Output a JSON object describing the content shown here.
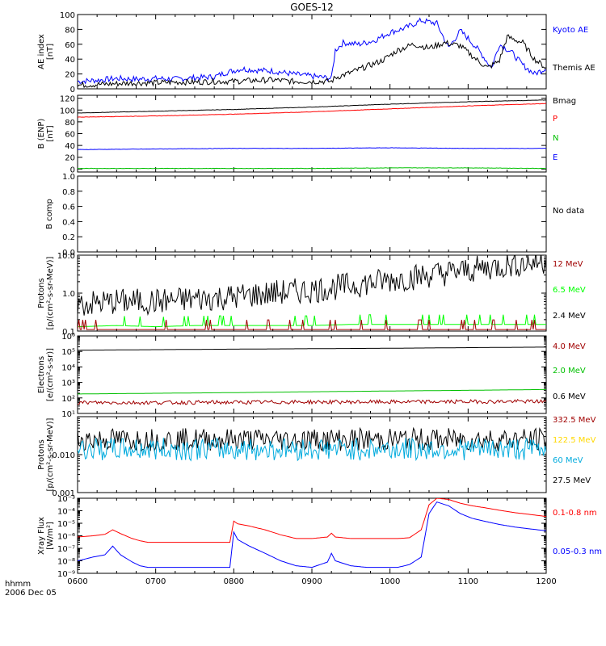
{
  "title": "GOES-12",
  "footer": {
    "time_label": "hhmm",
    "date_label": "2006 Dec 05"
  },
  "x_axis": {
    "ticks": [
      "0600",
      "0700",
      "0800",
      "0900",
      "1000",
      "1100",
      "1200"
    ]
  },
  "colors": {
    "black": "#000000",
    "blue": "#0000ff",
    "red": "#ff0000",
    "green": "#00c000",
    "dark_red": "#a00000",
    "bright_green": "#00ff00",
    "cyan": "#00aadd",
    "yellow": "#ffd800",
    "dark_green": "#00a000"
  },
  "chart_data": [
    {
      "type": "line",
      "ylabel": [
        "AE index",
        "[nT]"
      ],
      "yrange": [
        0,
        100
      ],
      "yticks": [
        "0",
        "20",
        "40",
        "60",
        "80",
        "100"
      ],
      "legend": [
        {
          "text": "Kyoto AE",
          "color": "#0000ff"
        },
        {
          "text": "Themis AE",
          "color": "#000000"
        }
      ],
      "series": [
        {
          "name": "Kyoto AE",
          "color": "#0000ff",
          "x": [
            6.0,
            6.3,
            6.5,
            6.75,
            7.0,
            7.25,
            7.5,
            7.75,
            7.9,
            8.1,
            8.3,
            8.5,
            8.75,
            9.0,
            9.25,
            9.3,
            9.4,
            9.6,
            9.8,
            10.0,
            10.2,
            10.4,
            10.6,
            10.75,
            10.9,
            11.0,
            11.15,
            11.3,
            11.4,
            11.55,
            11.7,
            11.85,
            12.0
          ],
          "y": [
            10,
            12,
            14,
            13,
            14,
            13,
            15,
            16,
            22,
            27,
            25,
            24,
            20,
            17,
            14,
            52,
            62,
            60,
            65,
            76,
            82,
            92,
            88,
            55,
            78,
            68,
            50,
            28,
            60,
            50,
            32,
            20,
            28
          ]
        },
        {
          "name": "Themis AE",
          "color": "#000000",
          "x": [
            6.0,
            6.3,
            6.5,
            6.75,
            7.0,
            7.25,
            7.5,
            7.75,
            8.0,
            8.2,
            8.5,
            8.75,
            9.0,
            9.25,
            9.3,
            9.5,
            9.7,
            9.9,
            10.1,
            10.3,
            10.5,
            10.7,
            10.9,
            11.1,
            11.25,
            11.4,
            11.5,
            11.7,
            11.85,
            12.0
          ],
          "y": [
            5,
            6,
            7,
            8,
            8,
            9,
            9,
            10,
            10,
            11,
            12,
            10,
            10,
            10,
            15,
            22,
            30,
            38,
            52,
            60,
            55,
            62,
            58,
            40,
            28,
            38,
            70,
            62,
            40,
            28
          ]
        }
      ]
    },
    {
      "type": "line",
      "ylabel": [
        "B (ENP)",
        "[nT]"
      ],
      "yrange": [
        -5,
        125
      ],
      "yticks": [
        "0",
        "20",
        "40",
        "60",
        "80",
        "100",
        "120"
      ],
      "legend": [
        {
          "text": "Bmag",
          "color": "#000000"
        },
        {
          "text": "P",
          "color": "#ff0000"
        },
        {
          "text": "N",
          "color": "#00c000"
        },
        {
          "text": "E",
          "color": "#0000ff"
        }
      ],
      "series": [
        {
          "name": "Bmag",
          "color": "#000000",
          "x": [
            6.0,
            7.0,
            8.0,
            9.0,
            10.0,
            11.0,
            12.0
          ],
          "y": [
            95,
            98,
            101,
            105,
            110,
            114,
            117
          ]
        },
        {
          "name": "P",
          "color": "#ff0000",
          "x": [
            6.0,
            7.0,
            8.0,
            9.0,
            10.0,
            11.0,
            12.0
          ],
          "y": [
            88,
            90,
            93,
            97,
            102,
            107,
            111
          ]
        },
        {
          "name": "N",
          "color": "#00c000",
          "x": [
            6.0,
            7.0,
            8.0,
            9.0,
            10.0,
            11.0,
            12.0
          ],
          "y": [
            1,
            1,
            1,
            1,
            2,
            2,
            1
          ]
        },
        {
          "name": "E",
          "color": "#0000ff",
          "x": [
            6.0,
            7.0,
            8.0,
            9.0,
            10.0,
            11.0,
            12.0
          ],
          "y": [
            33,
            34,
            35,
            35,
            36,
            35,
            35
          ]
        }
      ]
    },
    {
      "type": "line",
      "ylabel": [
        "B comp"
      ],
      "yrange": [
        0,
        1
      ],
      "yticks": [
        "0.0",
        "0.2",
        "0.4",
        "0.6",
        "0.8",
        "1.0"
      ],
      "legend": [
        {
          "text": "No data",
          "color": "#000000"
        }
      ],
      "series": []
    },
    {
      "type": "line",
      "log": true,
      "ylabel": [
        "Protons",
        "[p/(cm²-s-sr-MeV)]"
      ],
      "yrange": [
        0.1,
        10
      ],
      "yticks": [
        "0.1",
        "1.0",
        "10.0"
      ],
      "legend": [
        {
          "text": "12 MeV",
          "color": "#a00000"
        },
        {
          "text": "6.5 MeV",
          "color": "#00ff00"
        },
        {
          "text": "2.4 MeV",
          "color": "#000000"
        }
      ],
      "series": [
        {
          "name": "2.4 MeV",
          "color": "#000000",
          "x": [
            6.0,
            6.5,
            7.0,
            7.5,
            8.0,
            8.5,
            9.0,
            9.5,
            10.0,
            10.5,
            11.0,
            11.5,
            12.0
          ],
          "y": [
            0.5,
            0.6,
            0.6,
            0.7,
            0.8,
            1.0,
            1.2,
            1.6,
            2.2,
            3.0,
            4.0,
            5.5,
            7.0
          ]
        },
        {
          "name": "6.5 MeV",
          "color": "#00ff00",
          "x": [
            6.0,
            6.5,
            7.0,
            7.5,
            8.0,
            8.5,
            9.0,
            9.5,
            10.0,
            10.5,
            11.0,
            11.5,
            12.0
          ],
          "y": [
            0.13,
            0.14,
            0.13,
            0.14,
            0.14,
            0.14,
            0.14,
            0.15,
            0.15,
            0.15,
            0.15,
            0.15,
            0.15
          ]
        },
        {
          "name": "12 MeV",
          "color": "#a00000",
          "x": [
            6.0,
            7.0,
            8.0,
            9.0,
            10.0,
            11.0,
            12.0
          ],
          "y": [
            0.11,
            0.11,
            0.11,
            0.11,
            0.11,
            0.11,
            0.11
          ]
        }
      ]
    },
    {
      "type": "line",
      "log": true,
      "ylabel": [
        "Electrons",
        "[e/(cm²-s-sr)]"
      ],
      "yrange": [
        10,
        1000000
      ],
      "yticks": [
        "10¹",
        "10²",
        "10³",
        "10⁴",
        "10⁵",
        "10⁶"
      ],
      "legend": [
        {
          "text": "4.0 MeV",
          "color": "#a00000"
        },
        {
          "text": "2.0 MeV",
          "color": "#00c000"
        },
        {
          "text": "0.6 MeV",
          "color": "#000000"
        }
      ],
      "series": [
        {
          "name": "0.6 MeV",
          "color": "#000000",
          "x": [
            6.0,
            7.0,
            8.0,
            9.0,
            10.0,
            11.0,
            12.0
          ],
          "y": [
            120000,
            130000,
            140000,
            150000,
            160000,
            175000,
            190000
          ]
        },
        {
          "name": "2.0 MeV",
          "color": "#00c000",
          "x": [
            6.0,
            7.0,
            8.0,
            9.0,
            10.0,
            11.0,
            12.0
          ],
          "y": [
            180,
            200,
            220,
            250,
            280,
            310,
            350
          ]
        },
        {
          "name": "4.0 MeV",
          "color": "#a00000",
          "x": [
            6.0,
            7.0,
            8.0,
            9.0,
            10.0,
            11.0,
            12.0
          ],
          "y": [
            50,
            50,
            52,
            55,
            55,
            58,
            60
          ]
        }
      ]
    },
    {
      "type": "line",
      "log": true,
      "ylabel": [
        "Protons",
        "[p/(cm²-s-sr-MeV)]"
      ],
      "yrange": [
        0.001,
        0.1
      ],
      "yticks": [
        "0.001",
        "0.010"
      ],
      "legend": [
        {
          "text": "332.5 MeV",
          "color": "#a00000"
        },
        {
          "text": "122.5 MeV",
          "color": "#ffd800"
        },
        {
          "text": "60 MeV",
          "color": "#00aadd"
        },
        {
          "text": "27.5 MeV",
          "color": "#000000"
        }
      ],
      "series": [
        {
          "name": "27.5 MeV",
          "color": "#000000",
          "x": [
            6.0,
            7.0,
            8.0,
            9.0,
            10.0,
            11.0,
            12.0
          ],
          "y": [
            0.025,
            0.025,
            0.025,
            0.025,
            0.025,
            0.025,
            0.025
          ]
        },
        {
          "name": "60 MeV",
          "color": "#00aadd",
          "x": [
            6.0,
            7.0,
            8.0,
            9.0,
            10.0,
            11.0,
            12.0
          ],
          "y": [
            0.014,
            0.014,
            0.014,
            0.014,
            0.014,
            0.014,
            0.014
          ]
        }
      ]
    },
    {
      "type": "line",
      "log": true,
      "ylabel": [
        "Xray Flux",
        "[W/m²]"
      ],
      "yrange": [
        1e-09,
        0.001
      ],
      "yticks": [
        "10⁻⁹",
        "10⁻⁸",
        "10⁻⁷",
        "10⁻⁶",
        "10⁻⁵",
        "10⁻⁴",
        "10⁻³"
      ],
      "legend": [
        {
          "text": "0.1-0.8 nm",
          "color": "#ff0000"
        },
        {
          "text": "0.05-0.3 nm",
          "color": "#0000ff"
        }
      ],
      "series": [
        {
          "name": "0.1-0.8 nm",
          "color": "#ff0000",
          "x": [
            6.0,
            6.2,
            6.35,
            6.45,
            6.55,
            6.7,
            6.8,
            6.9,
            7.0,
            7.2,
            7.4,
            7.6,
            7.75,
            7.95,
            8.0,
            8.05,
            8.2,
            8.4,
            8.6,
            8.8,
            9.0,
            9.2,
            9.25,
            9.3,
            9.5,
            9.7,
            9.9,
            10.1,
            10.25,
            10.4,
            10.5,
            10.6,
            10.75,
            10.9,
            11.05,
            11.2,
            11.4,
            11.6,
            11.8,
            12.0
          ],
          "y": [
            8e-07,
            1e-06,
            1.3e-06,
            3e-06,
            1.5e-06,
            6e-07,
            4e-07,
            3e-07,
            3e-07,
            3e-07,
            3e-07,
            3e-07,
            3e-07,
            3e-07,
            1.5e-05,
            9e-06,
            6e-06,
            3e-06,
            1.2e-06,
            6e-07,
            6e-07,
            8e-07,
            1.6e-06,
            8e-07,
            6e-07,
            6e-07,
            6e-07,
            6e-07,
            7e-07,
            3e-06,
            0.0003,
            0.001,
            0.0008,
            0.0004,
            0.00025,
            0.00018,
            0.00011,
            7e-05,
            5e-05,
            3.5e-05
          ]
        },
        {
          "name": "0.05-0.3 nm",
          "color": "#0000ff",
          "x": [
            6.0,
            6.2,
            6.35,
            6.45,
            6.55,
            6.7,
            6.8,
            6.9,
            7.0,
            7.2,
            7.4,
            7.6,
            7.75,
            7.95,
            8.0,
            8.05,
            8.2,
            8.4,
            8.6,
            8.8,
            9.0,
            9.2,
            9.25,
            9.3,
            9.5,
            9.7,
            9.9,
            10.1,
            10.25,
            10.4,
            10.5,
            10.6,
            10.75,
            10.9,
            11.05,
            11.2,
            11.4,
            11.6,
            11.8,
            12.0
          ],
          "y": [
            1e-08,
            2e-08,
            3e-08,
            1.5e-07,
            3e-08,
            8e-09,
            4e-09,
            3e-09,
            3e-09,
            3e-09,
            3e-09,
            3e-09,
            3e-09,
            3e-09,
            2e-06,
            5e-07,
            1.5e-07,
            4e-08,
            1e-08,
            4e-09,
            3e-09,
            8e-09,
            4e-08,
            1e-08,
            4e-09,
            3e-09,
            3e-09,
            3e-09,
            5e-09,
            2e-08,
            6e-05,
            0.0005,
            0.00025,
            6e-05,
            2.5e-05,
            1.5e-05,
            8e-06,
            5e-06,
            3.5e-06,
            2.5e-06
          ]
        }
      ]
    }
  ]
}
